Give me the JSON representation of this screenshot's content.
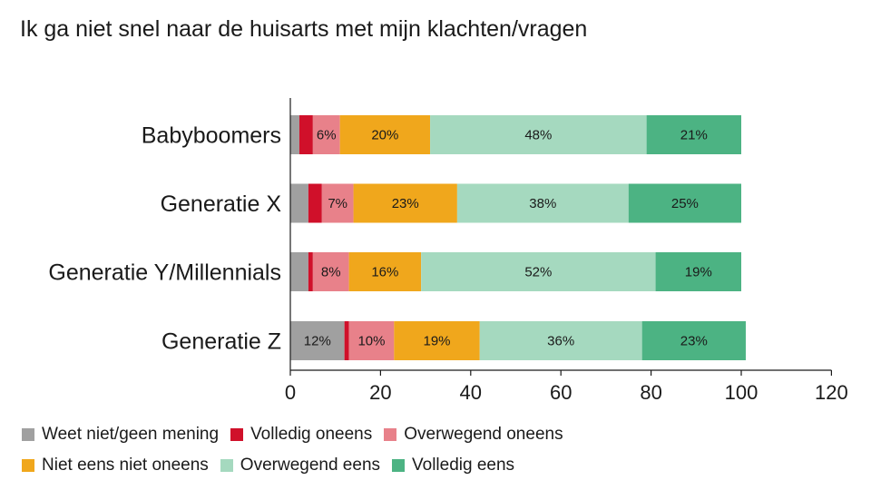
{
  "chart_data": {
    "type": "bar",
    "orientation": "horizontal",
    "stacked": true,
    "title": "Ik ga niet snel naar de huisarts met mijn klachten/vragen",
    "categories": [
      "Babyboomers",
      "Generatie X",
      "Generatie Y/Millennials",
      "Generatie Z"
    ],
    "series": [
      {
        "name": "Weet niet/geen mening",
        "color": "#a0a0a0",
        "values": [
          2,
          4,
          4,
          12
        ],
        "labels": [
          "",
          "",
          "",
          "12%"
        ]
      },
      {
        "name": "Volledig oneens",
        "color": "#d0102a",
        "values": [
          3,
          3,
          1,
          1
        ],
        "labels": [
          "",
          "",
          "",
          ""
        ]
      },
      {
        "name": "Overwegend oneens",
        "color": "#e8818a",
        "values": [
          6,
          7,
          8,
          10
        ],
        "labels": [
          "6%",
          "7%",
          "8%",
          "10%"
        ]
      },
      {
        "name": "Niet eens niet oneens",
        "color": "#f0a71c",
        "values": [
          20,
          23,
          16,
          19
        ],
        "labels": [
          "20%",
          "23%",
          "16%",
          "19%"
        ]
      },
      {
        "name": "Overwegend eens",
        "color": "#a5d9bf",
        "values": [
          48,
          38,
          52,
          36
        ],
        "labels": [
          "48%",
          "38%",
          "52%",
          "36%"
        ]
      },
      {
        "name": "Volledig eens",
        "color": "#4cb383",
        "values": [
          21,
          25,
          19,
          23
        ],
        "labels": [
          "21%",
          "25%",
          "19%",
          "23%"
        ]
      }
    ],
    "xlim": [
      0,
      120
    ],
    "xticks": [
      "0",
      "20",
      "40",
      "60",
      "80",
      "100",
      "120"
    ],
    "xtick_values": [
      0,
      20,
      40,
      60,
      80,
      100,
      120
    ],
    "xlabel": "",
    "ylabel": "",
    "grid": false,
    "legend_position": "bottom"
  }
}
